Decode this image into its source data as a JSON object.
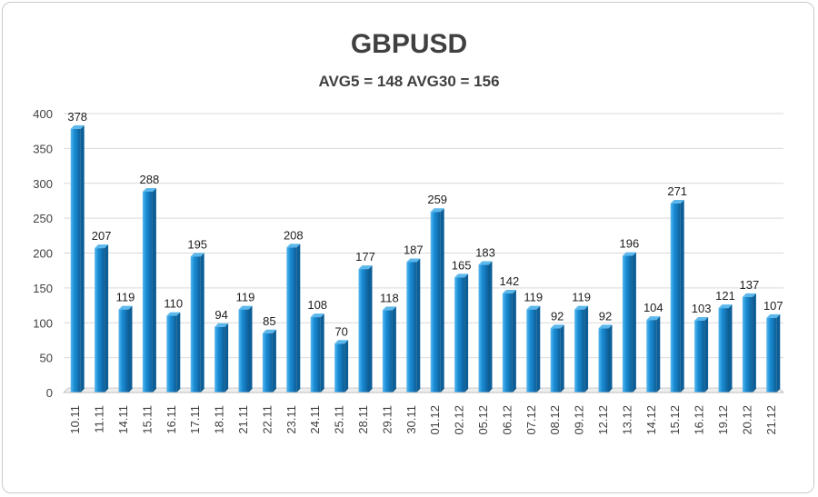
{
  "chart_data": {
    "type": "bar",
    "title": "GBPUSD",
    "subtitle": "AVG5 = 148 AVG30 = 156",
    "xlabel": "",
    "ylabel": "",
    "ylim": [
      0,
      400
    ],
    "yticks": [
      0,
      50,
      100,
      150,
      200,
      250,
      300,
      350,
      400
    ],
    "grid": true,
    "legend": "none",
    "categories": [
      "10.11",
      "11.11",
      "14.11",
      "15.11",
      "16.11",
      "17.11",
      "18.11",
      "21.11",
      "22.11",
      "23.11",
      "24.11",
      "25.11",
      "28.11",
      "29.11",
      "30.11",
      "01.12",
      "02.12",
      "05.12",
      "06.12",
      "07.12",
      "08.12",
      "09.12",
      "12.12",
      "13.12",
      "14.12",
      "15.12",
      "16.12",
      "19.12",
      "20.12",
      "21.12"
    ],
    "values": [
      378,
      207,
      119,
      288,
      110,
      195,
      94,
      119,
      85,
      208,
      108,
      70,
      177,
      118,
      187,
      259,
      165,
      183,
      142,
      119,
      92,
      119,
      92,
      196,
      104,
      271,
      103,
      121,
      137,
      107
    ],
    "colors": {
      "bar_light": "#5cb8ec",
      "bar_main": "#1a8fd8",
      "bar_dark": "#0d5e96",
      "grid": "#d9d9d9",
      "axis": "#bfbfbf"
    }
  }
}
